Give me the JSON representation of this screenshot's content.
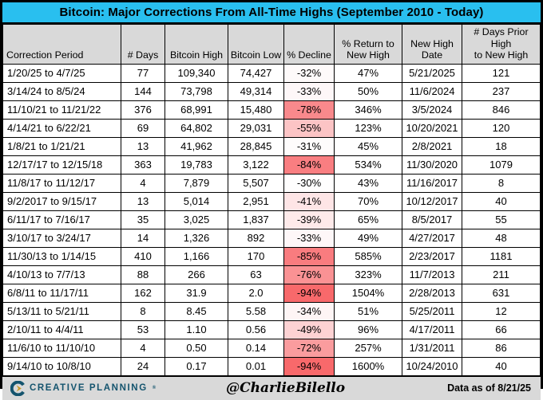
{
  "title": "Bitcoin: Major Corrections From All-Time Highs (September 2010 - Today)",
  "chart_data": {
    "type": "table",
    "title": "Bitcoin: Major Corrections From All-Time Highs (September 2010 - Today)",
    "columns": [
      "Correction Period",
      "# Days",
      "Bitcoin High",
      "Bitcoin Low",
      "% Decline",
      "% Return to\nNew High",
      "New High\nDate",
      "# Days Prior High\nto New High"
    ],
    "rows": [
      {
        "period": "1/20/25 to 4/7/25",
        "days": "77",
        "high": "109,340",
        "low": "74,427",
        "decline": "-32%",
        "return_to_new_high": "47%",
        "new_high_date": "5/21/2025",
        "days_prior_high_to_new_high": "121",
        "decline_bg": "#FEFAFA"
      },
      {
        "period": "3/14/24 to 8/5/24",
        "days": "144",
        "high": "73,798",
        "low": "49,314",
        "decline": "-33%",
        "return_to_new_high": "50%",
        "new_high_date": "11/6/2024",
        "days_prior_high_to_new_high": "237",
        "decline_bg": "#FEF7F8"
      },
      {
        "period": "11/10/21 to 11/21/22",
        "days": "376",
        "high": "68,991",
        "low": "15,480",
        "decline": "-78%",
        "return_to_new_high": "346%",
        "new_high_date": "3/5/2024",
        "days_prior_high_to_new_high": "846",
        "decline_bg": "#F9898C"
      },
      {
        "period": "4/14/21 to 6/22/21",
        "days": "69",
        "high": "64,802",
        "low": "29,031",
        "decline": "-55%",
        "return_to_new_high": "123%",
        "new_high_date": "10/20/2021",
        "days_prior_high_to_new_high": "120",
        "decline_bg": "#FCC4C5"
      },
      {
        "period": "1/8/21 to 1/21/21",
        "days": "13",
        "high": "41,962",
        "low": "28,845",
        "decline": "-31%",
        "return_to_new_high": "45%",
        "new_high_date": "2/8/2021",
        "days_prior_high_to_new_high": "18",
        "decline_bg": "#FEFCFC"
      },
      {
        "period": "12/17/17 to 12/15/18",
        "days": "363",
        "high": "19,783",
        "low": "3,122",
        "decline": "-84%",
        "return_to_new_high": "534%",
        "new_high_date": "11/30/2020",
        "days_prior_high_to_new_high": "1079",
        "decline_bg": "#F97E81"
      },
      {
        "period": "11/8/17 to 11/12/17",
        "days": "4",
        "high": "7,879",
        "low": "5,507",
        "decline": "-30%",
        "return_to_new_high": "43%",
        "new_high_date": "11/16/2017",
        "days_prior_high_to_new_high": "8",
        "decline_bg": "#FFFEFE"
      },
      {
        "period": "9/2/2017 to 9/15/17",
        "days": "13",
        "high": "5,014",
        "low": "2,951",
        "decline": "-41%",
        "return_to_new_high": "70%",
        "new_high_date": "10/12/2017",
        "days_prior_high_to_new_high": "40",
        "decline_bg": "#FEE5E6"
      },
      {
        "period": "6/11/17 to 7/16/17",
        "days": "35",
        "high": "3,025",
        "low": "1,837",
        "decline": "-39%",
        "return_to_new_high": "65%",
        "new_high_date": "8/5/2017",
        "days_prior_high_to_new_high": "55",
        "decline_bg": "#FEEAEA"
      },
      {
        "period": "3/10/17 to 3/24/17",
        "days": "14",
        "high": "1,326",
        "low": "892",
        "decline": "-33%",
        "return_to_new_high": "49%",
        "new_high_date": "4/27/2017",
        "days_prior_high_to_new_high": "48",
        "decline_bg": "#FEF7F8"
      },
      {
        "period": "11/30/13 to 1/14/15",
        "days": "410",
        "high": "1,166",
        "low": "170",
        "decline": "-85%",
        "return_to_new_high": "585%",
        "new_high_date": "2/23/2017",
        "days_prior_high_to_new_high": "1181",
        "decline_bg": "#F97C7F"
      },
      {
        "period": "4/10/13 to 7/7/13",
        "days": "88",
        "high": "266",
        "low": "63",
        "decline": "-76%",
        "return_to_new_high": "323%",
        "new_high_date": "11/7/2013",
        "days_prior_high_to_new_high": "211",
        "decline_bg": "#FA9294"
      },
      {
        "period": "6/8/11 to 11/17/11",
        "days": "162",
        "high": "31.9",
        "low": "2.0",
        "decline": "-94%",
        "return_to_new_high": "1504%",
        "new_high_date": "2/28/2013",
        "days_prior_high_to_new_high": "631",
        "decline_bg": "#F8696B"
      },
      {
        "period": "5/13/11 to 5/21/11",
        "days": "8",
        "high": "8.45",
        "low": "5.58",
        "decline": "-34%",
        "return_to_new_high": "51%",
        "new_high_date": "5/25/2011",
        "days_prior_high_to_new_high": "12",
        "decline_bg": "#FEF5F5"
      },
      {
        "period": "2/10/11 to 4/4/11",
        "days": "53",
        "high": "1.10",
        "low": "0.56",
        "decline": "-49%",
        "return_to_new_high": "96%",
        "new_high_date": "4/17/2011",
        "days_prior_high_to_new_high": "66",
        "decline_bg": "#FDD2D3"
      },
      {
        "period": "11/6/10 to 11/10/10",
        "days": "4",
        "high": "0.50",
        "low": "0.14",
        "decline": "-72%",
        "return_to_new_high": "257%",
        "new_high_date": "1/31/2011",
        "days_prior_high_to_new_high": "86",
        "decline_bg": "#FA9C9E"
      },
      {
        "period": "9/14/10 to 10/8/10",
        "days": "24",
        "high": "0.17",
        "low": "0.01",
        "decline": "-94%",
        "return_to_new_high": "1600%",
        "new_high_date": "10/24/2010",
        "days_prior_high_to_new_high": "40",
        "decline_bg": "#F8696B"
      }
    ]
  },
  "footer": {
    "brand": "CREATIVE PLANNING",
    "brand_mark": "®",
    "handle": "@CharlieBilello",
    "data_as_of": "Data as of 8/21/25"
  },
  "colors": {
    "title_bg": "#29BFEF",
    "header_bg": "#D9D9D9",
    "footer_bg": "#D9D9D9",
    "border": "#000000",
    "brand_teal": "#14546E",
    "brand_gold": "#C79A2A",
    "decline_scale_min": "#FFFFFF",
    "decline_scale_max": "#F8696B"
  }
}
